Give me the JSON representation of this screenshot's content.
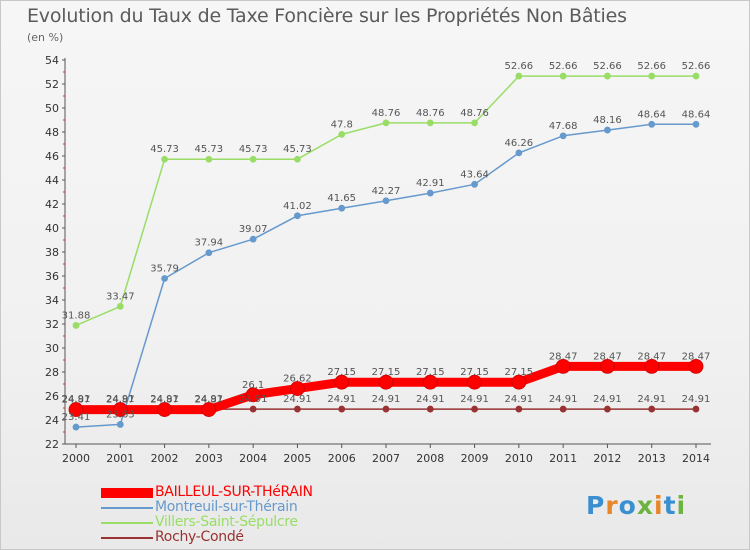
{
  "header": {
    "title": "Evolution du Taux de Taxe Foncière sur les Propriétés Non Bâties",
    "unit": "(en %)"
  },
  "logo": {
    "text": "Proxiti",
    "colors": [
      "#3a8fd1",
      "#e8862a",
      "#3a8fd1",
      "#6cb33f",
      "#e8862a",
      "#3a8fd1",
      "#6cb33f"
    ]
  },
  "chart_data": {
    "type": "line",
    "title": "Evolution du Taux de Taxe Foncière sur les Propriétés Non Bâties",
    "ylabel": "(en %)",
    "x": [
      2000,
      2001,
      2002,
      2003,
      2004,
      2005,
      2006,
      2007,
      2008,
      2009,
      2010,
      2011,
      2012,
      2013,
      2014
    ],
    "ylim": [
      22,
      54
    ],
    "ytick_step": 2,
    "grid": false,
    "legend_position": "bottom-left",
    "series": [
      {
        "name": "BAILLEUL-SUR-THéRAIN",
        "color": "#ff0000",
        "emphasis": true,
        "values": [
          24.87,
          24.87,
          24.87,
          24.87,
          26.1,
          26.62,
          27.15,
          27.15,
          27.15,
          27.15,
          27.15,
          28.47,
          28.47,
          28.47,
          28.47
        ],
        "labels": [
          "24.87",
          "24.87",
          "24.87",
          "24.87",
          "26.1",
          "26.62",
          "27.15",
          "27.15",
          "27.15",
          "27.15",
          "27.15",
          "28.47",
          "28.47",
          "28.47",
          "28.47"
        ]
      },
      {
        "name": "Montreuil-sur-Thérain",
        "color": "#6699cc",
        "emphasis": false,
        "values": [
          23.41,
          23.63,
          35.79,
          37.94,
          39.07,
          41.02,
          41.65,
          42.27,
          42.91,
          43.64,
          46.26,
          47.68,
          48.16,
          48.64,
          48.64
        ],
        "labels": [
          "23.41",
          "23.63",
          "35.79",
          "37.94",
          "39.07",
          "41.02",
          "41.65",
          "42.27",
          "42.91",
          "43.64",
          "46.26",
          "47.68",
          "48.16",
          "48.64",
          "48.64"
        ]
      },
      {
        "name": "Villers-Saint-Sépulcre",
        "color": "#99dd66",
        "emphasis": false,
        "values": [
          31.88,
          33.47,
          45.73,
          45.73,
          45.73,
          45.73,
          47.8,
          48.76,
          48.76,
          48.76,
          52.66,
          52.66,
          52.66,
          52.66,
          52.66
        ],
        "labels": [
          "31.88",
          "33.47",
          "45.73",
          "45.73",
          "45.73",
          "45.73",
          "47.8",
          "48.76",
          "48.76",
          "48.76",
          "52.66",
          "52.66",
          "52.66",
          "52.66",
          "52.66"
        ]
      },
      {
        "name": "Rochy-Condé",
        "color": "#993333",
        "emphasis": false,
        "values": [
          24.91,
          24.91,
          24.91,
          24.91,
          24.91,
          24.91,
          24.91,
          24.91,
          24.91,
          24.91,
          24.91,
          24.91,
          24.91,
          24.91,
          24.91
        ],
        "labels": [
          "24.91",
          "24.91",
          "24.91",
          "24.91",
          "24.91",
          "24.91",
          "24.91",
          "24.91",
          "24.91",
          "24.91",
          "24.91",
          "24.91",
          "24.91",
          "24.91",
          "24.91"
        ]
      }
    ]
  }
}
